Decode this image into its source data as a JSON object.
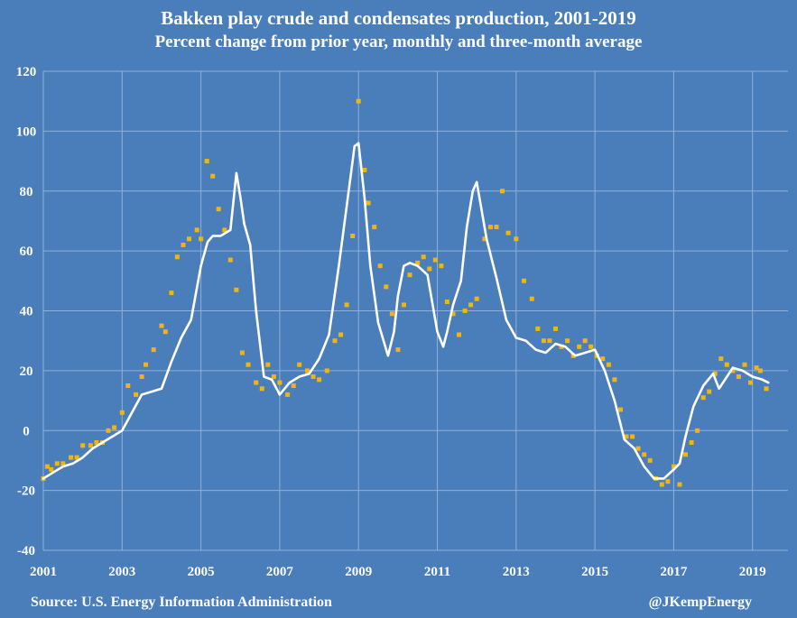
{
  "chart_data": {
    "type": "line",
    "title": "Bakken play crude and condensates production, 2001-2019",
    "subtitle": "Percent change from prior year, monthly and three-month average",
    "ylim": [
      -40,
      120
    ],
    "yticks": [
      -40,
      -20,
      0,
      20,
      40,
      60,
      80,
      100,
      120
    ],
    "xlim": [
      2001,
      2019.9
    ],
    "xticks": [
      "2001",
      "2003",
      "2005",
      "2007",
      "2009",
      "2011",
      "2013",
      "2015",
      "2017",
      "2019"
    ],
    "grid": true,
    "series": [
      {
        "style": "line",
        "color": "#ffffff",
        "x": [
          2001.0,
          2001.25,
          2001.5,
          2001.75,
          2002.0,
          2002.25,
          2002.5,
          2002.75,
          2003.0,
          2003.25,
          2003.5,
          2003.75,
          2004.0,
          2004.25,
          2004.5,
          2004.75,
          2005.0,
          2005.17,
          2005.3,
          2005.5,
          2005.75,
          2005.9,
          2006.0,
          2006.1,
          2006.25,
          2006.4,
          2006.6,
          2006.8,
          2007.0,
          2007.25,
          2007.5,
          2007.75,
          2008.0,
          2008.25,
          2008.5,
          2008.75,
          2008.9,
          2009.0,
          2009.15,
          2009.3,
          2009.5,
          2009.75,
          2009.9,
          2010.0,
          2010.15,
          2010.3,
          2010.5,
          2010.75,
          2011.0,
          2011.15,
          2011.25,
          2011.4,
          2011.6,
          2011.75,
          2011.9,
          2012.0,
          2012.25,
          2012.5,
          2012.75,
          2013.0,
          2013.25,
          2013.5,
          2013.75,
          2014.0,
          2014.25,
          2014.5,
          2014.75,
          2015.0,
          2015.25,
          2015.5,
          2015.75,
          2016.0,
          2016.25,
          2016.5,
          2016.75,
          2017.0,
          2017.15,
          2017.3,
          2017.5,
          2017.75,
          2018.0,
          2018.15,
          2018.3,
          2018.5,
          2018.75,
          2019.0,
          2019.25,
          2019.4
        ],
        "y": [
          -16,
          -14,
          -12,
          -11,
          -9,
          -6,
          -4,
          -2,
          0,
          6,
          12,
          13,
          14,
          23,
          31,
          37,
          55,
          63,
          65,
          65,
          67,
          86,
          78,
          69,
          62,
          40,
          18,
          17,
          12,
          16,
          18,
          19,
          24,
          32,
          55,
          80,
          95,
          96,
          78,
          55,
          36,
          25,
          33,
          45,
          55,
          56,
          55,
          52,
          33,
          28,
          33,
          42,
          50,
          68,
          80,
          83,
          64,
          51,
          37,
          31,
          30,
          27,
          26,
          29,
          28,
          25,
          26,
          27,
          20,
          10,
          -3,
          -6,
          -12,
          -16,
          -16,
          -13,
          -11,
          -2,
          8,
          15,
          19,
          14,
          17,
          21,
          20,
          18,
          17,
          16
        ]
      },
      {
        "style": "markers",
        "color": "#f2b50c",
        "x": [
          2001.0,
          2001.1,
          2001.2,
          2001.35,
          2001.5,
          2001.7,
          2001.85,
          2002.0,
          2002.2,
          2002.35,
          2002.5,
          2002.65,
          2002.8,
          2003.0,
          2003.15,
          2003.35,
          2003.5,
          2003.6,
          2003.8,
          2004.0,
          2004.1,
          2004.25,
          2004.4,
          2004.55,
          2004.7,
          2004.9,
          2005.0,
          2005.15,
          2005.3,
          2005.45,
          2005.6,
          2005.75,
          2005.9,
          2006.05,
          2006.2,
          2006.4,
          2006.55,
          2006.7,
          2006.85,
          2007.0,
          2007.2,
          2007.35,
          2007.5,
          2007.7,
          2007.85,
          2008.0,
          2008.2,
          2008.4,
          2008.55,
          2008.7,
          2008.85,
          2009.0,
          2009.15,
          2009.25,
          2009.4,
          2009.55,
          2009.7,
          2009.85,
          2010.0,
          2010.15,
          2010.3,
          2010.5,
          2010.65,
          2010.8,
          2010.95,
          2011.1,
          2011.25,
          2011.4,
          2011.55,
          2011.7,
          2011.85,
          2012.0,
          2012.2,
          2012.35,
          2012.5,
          2012.65,
          2012.8,
          2013.0,
          2013.2,
          2013.4,
          2013.55,
          2013.7,
          2013.85,
          2014.0,
          2014.15,
          2014.3,
          2014.45,
          2014.6,
          2014.75,
          2014.9,
          2015.05,
          2015.2,
          2015.35,
          2015.5,
          2015.65,
          2015.8,
          2015.95,
          2016.1,
          2016.25,
          2016.4,
          2016.55,
          2016.7,
          2016.85,
          2017.0,
          2017.15,
          2017.3,
          2017.45,
          2017.6,
          2017.75,
          2017.9,
          2018.05,
          2018.2,
          2018.35,
          2018.5,
          2018.65,
          2018.8,
          2018.95,
          2019.1,
          2019.2,
          2019.35
        ],
        "y": [
          -16,
          -12,
          -13,
          -11,
          -11,
          -9,
          -9,
          -5,
          -5,
          -4,
          -4,
          0,
          1,
          6,
          15,
          12,
          18,
          22,
          27,
          35,
          33,
          46,
          58,
          62,
          64,
          67,
          64,
          90,
          85,
          74,
          67,
          57,
          47,
          26,
          22,
          16,
          14,
          22,
          18,
          16,
          12,
          15,
          22,
          20,
          18,
          17,
          20,
          30,
          32,
          42,
          65,
          110,
          87,
          76,
          68,
          55,
          48,
          39,
          27,
          42,
          52,
          56,
          58,
          54,
          57,
          55,
          43,
          39,
          32,
          40,
          42,
          44,
          64,
          68,
          68,
          80,
          66,
          64,
          50,
          44,
          34,
          30,
          30,
          34,
          28,
          30,
          25,
          28,
          30,
          28,
          25,
          24,
          22,
          17,
          7,
          -2,
          -2,
          -6,
          -8,
          -10,
          -16,
          -18,
          -17,
          -12,
          -18,
          -8,
          -4,
          0,
          11,
          13,
          19,
          24,
          22,
          20,
          18,
          22,
          16,
          21,
          20,
          14
        ]
      }
    ]
  },
  "footer": {
    "source": "Source: U.S. Energy Information Administration",
    "handle": "@JKempEnergy"
  }
}
